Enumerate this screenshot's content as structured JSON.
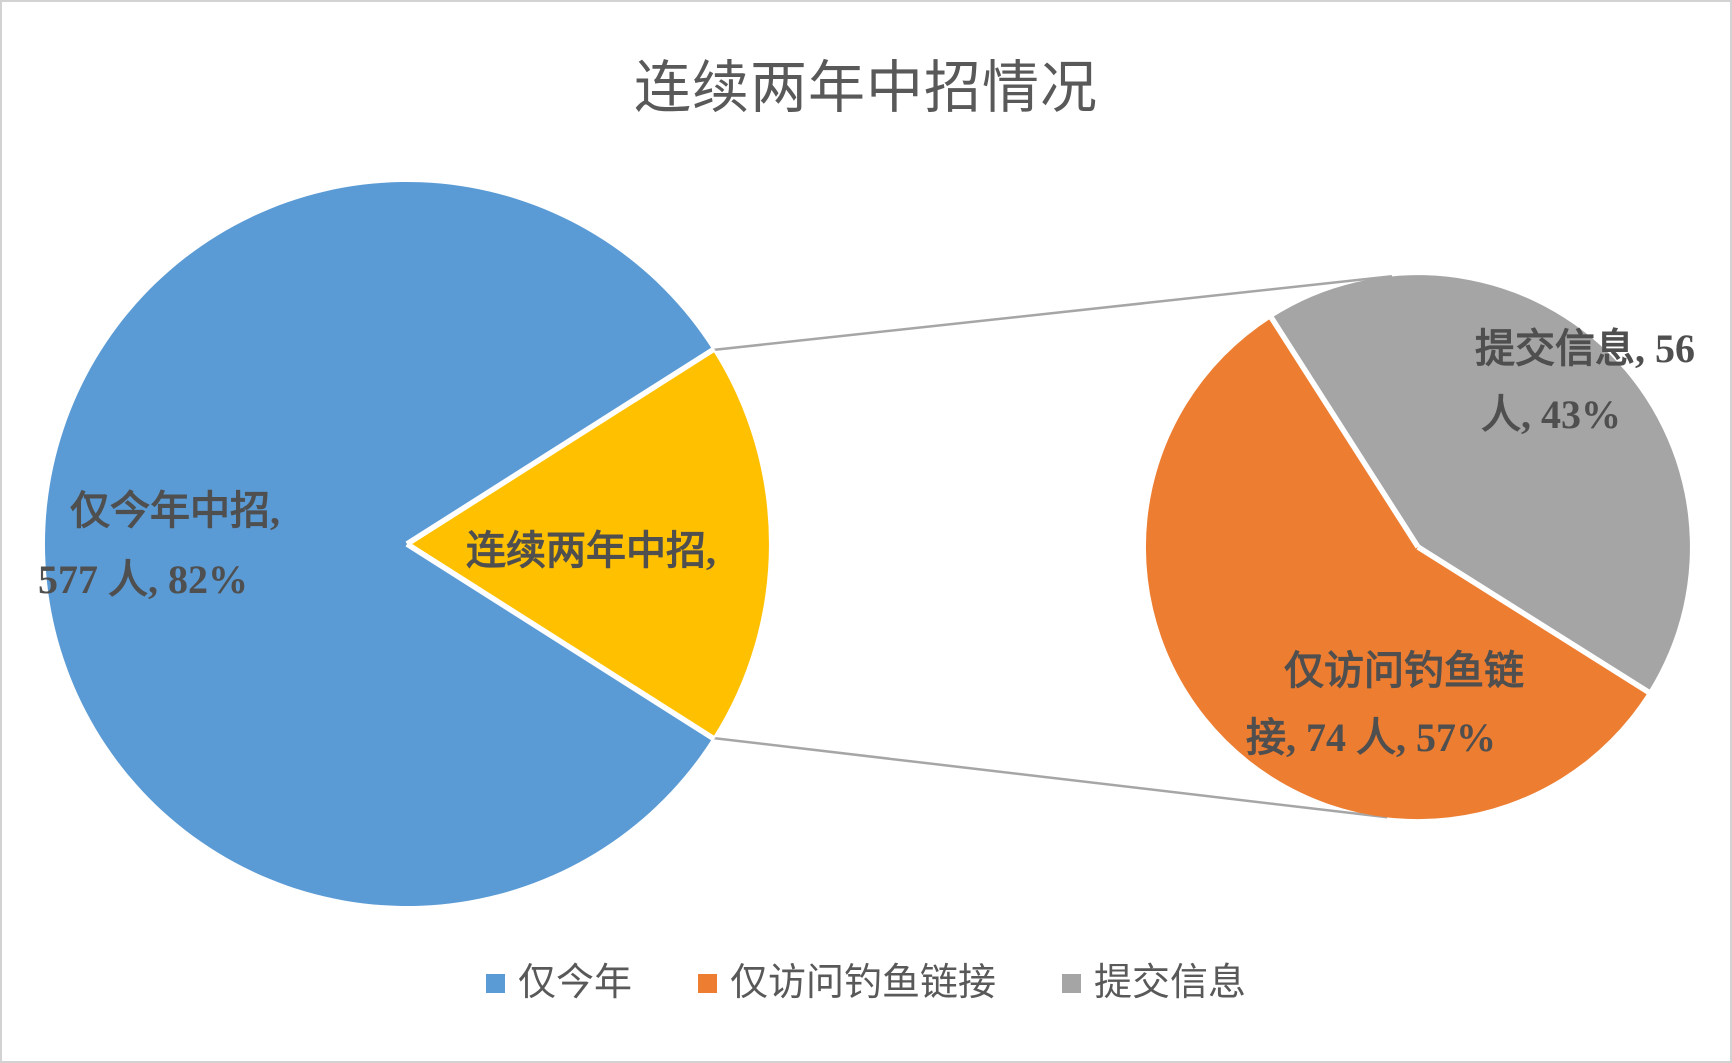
{
  "chart_data": {
    "type": "pie",
    "variant": "pie-of-pie",
    "title": "连续两年中招情况",
    "primary_pie": {
      "slices": [
        {
          "name": "仅今年中招",
          "people": 577,
          "percent": 82,
          "color": "#5B9BD5",
          "label_line1": "仅今年中招,",
          "label_line2": "577 人, 82%"
        },
        {
          "name": "连续两年中招",
          "percent": 18,
          "color": "#FFC000",
          "label_line1": "连续两年中招,"
        }
      ]
    },
    "secondary_pie": {
      "slices": [
        {
          "name": "仅访问钓鱼链接",
          "people": 74,
          "percent": 57,
          "color": "#ED7D31",
          "label_line1": "仅访问钓鱼链",
          "label_line2": "接, 74 人, 57%"
        },
        {
          "name": "提交信息",
          "people": 56,
          "percent": 43,
          "color": "#A5A5A5",
          "label_line1": "提交信息, 56",
          "label_line2": "人, 43%"
        }
      ]
    },
    "legend": [
      {
        "label": "仅今年",
        "color": "#5B9BD5"
      },
      {
        "label": "仅访问钓鱼链接",
        "color": "#ED7D31"
      },
      {
        "label": "提交信息",
        "color": "#A5A5A5"
      }
    ],
    "colors": {
      "connector_line": "#A6A6A6",
      "title_text": "#595959",
      "label_text": "#4F4F4F",
      "canvas_border": "#D2D2D2"
    }
  }
}
